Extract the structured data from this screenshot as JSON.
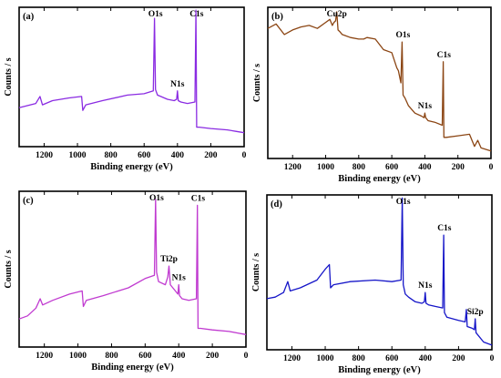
{
  "chart_data": [
    {
      "type": "line",
      "panel_label": "(a)",
      "xlabel": "Binding energy (eV)",
      "ylabel": "Counts / s",
      "xlim": [
        1350,
        0
      ],
      "xticks": [
        1200,
        1000,
        800,
        600,
        400,
        200,
        0
      ],
      "grid": false,
      "color": "#8a2be2",
      "series": [
        {
          "x": [
            1350,
            1250,
            1225,
            1210,
            1150,
            1050,
            975,
            968,
            950,
            850,
            700,
            600,
            545,
            538,
            532,
            520,
            500,
            460,
            420,
            405,
            400,
            395,
            380,
            340,
            295,
            289,
            285,
            270,
            200,
            100,
            50,
            0
          ],
          "y": [
            28,
            31,
            36,
            30,
            33,
            35,
            36,
            26,
            30,
            33,
            37,
            38,
            40,
            92,
            41,
            37,
            36,
            34,
            33,
            34,
            40,
            33,
            32,
            31,
            32,
            98,
            14,
            14,
            13,
            12,
            11,
            10
          ]
        }
      ],
      "annotations": [
        {
          "text": "O1s",
          "x": 532
        },
        {
          "text": "N1s",
          "x": 400
        },
        {
          "text": "C1s",
          "x": 285
        }
      ]
    },
    {
      "type": "line",
      "panel_label": "(b)",
      "xlabel": "Binding energy (eV)",
      "ylabel": "Counts / s",
      "xlim": [
        1350,
        0
      ],
      "xticks": [
        1200,
        1000,
        800,
        600,
        400,
        200,
        0
      ],
      "grid": false,
      "color": "#8b4513",
      "series": [
        {
          "x": [
            1350,
            1300,
            1250,
            1200,
            1150,
            1100,
            1050,
            1000,
            975,
            960,
            950,
            940,
            933,
            925,
            915,
            900,
            850,
            800,
            770,
            750,
            700,
            650,
            600,
            570,
            560,
            545,
            538,
            532,
            520,
            500,
            460,
            420,
            405,
            400,
            395,
            380,
            340,
            295,
            289,
            285,
            270,
            200,
            130,
            100,
            80,
            60,
            0
          ],
          "y": [
            86,
            89,
            82,
            85,
            87,
            88,
            86,
            90,
            92,
            88,
            90,
            91,
            97,
            85,
            84,
            82,
            80,
            79,
            79,
            80,
            79,
            72,
            70,
            60,
            58,
            50,
            77,
            42,
            40,
            35,
            30,
            28,
            27,
            30,
            27,
            25,
            24,
            22,
            64,
            14,
            14,
            15,
            16,
            8,
            12,
            7,
            5
          ]
        }
      ],
      "annotations": [
        {
          "text": "Cu2p",
          "x": 933
        },
        {
          "text": "O1s",
          "x": 532
        },
        {
          "text": "N1s",
          "x": 400
        },
        {
          "text": "C1s",
          "x": 285
        }
      ]
    },
    {
      "type": "line",
      "panel_label": "(c)",
      "xlabel": "Binding energy (eV)",
      "ylabel": "Counts / s",
      "xlim": [
        1350,
        0
      ],
      "xticks": [
        1200,
        1000,
        800,
        600,
        400,
        200,
        0
      ],
      "grid": false,
      "color": "#c03ad0",
      "series": [
        {
          "x": [
            1350,
            1300,
            1250,
            1225,
            1210,
            1150,
            1050,
            975,
            968,
            950,
            850,
            700,
            600,
            545,
            538,
            532,
            520,
            480,
            465,
            458,
            450,
            420,
            405,
            400,
            395,
            380,
            340,
            295,
            289,
            285,
            270,
            200,
            100,
            50,
            0
          ],
          "y": [
            18,
            20,
            25,
            31,
            27,
            30,
            34,
            36,
            26,
            30,
            33,
            38,
            44,
            46,
            95,
            48,
            42,
            40,
            45,
            52,
            40,
            36,
            34,
            40,
            33,
            31,
            30,
            31,
            91,
            12,
            12,
            11,
            10,
            9,
            8
          ]
        }
      ],
      "annotations": [
        {
          "text": "O1s",
          "x": 532
        },
        {
          "text": "Ti2p",
          "x": 458
        },
        {
          "text": "N1s",
          "x": 400
        },
        {
          "text": "C1s",
          "x": 285
        }
      ]
    },
    {
      "type": "line",
      "panel_label": "(d)",
      "xlabel": "Binding energy (eV)",
      "ylabel": "Counts / s",
      "xlim": [
        1350,
        0
      ],
      "xticks": [
        1200,
        1000,
        800,
        600,
        400,
        200,
        0
      ],
      "grid": false,
      "color": "#1515c8",
      "series": [
        {
          "x": [
            1350,
            1300,
            1250,
            1225,
            1210,
            1150,
            1050,
            1000,
            975,
            968,
            950,
            850,
            700,
            600,
            545,
            538,
            532,
            520,
            500,
            460,
            420,
            405,
            400,
            395,
            380,
            340,
            295,
            289,
            285,
            270,
            200,
            160,
            153,
            148,
            120,
            105,
            100,
            95,
            50,
            0
          ],
          "y": [
            33,
            34,
            37,
            44,
            38,
            40,
            45,
            52,
            55,
            40,
            42,
            44,
            45,
            44,
            45,
            98,
            42,
            36,
            34,
            31,
            30,
            31,
            37,
            30,
            29,
            28,
            27,
            74,
            24,
            21,
            19,
            18,
            26,
            15,
            14,
            13,
            20,
            11,
            5,
            3
          ]
        }
      ],
      "annotations": [
        {
          "text": "O1s",
          "x": 532
        },
        {
          "text": "N1s",
          "x": 400
        },
        {
          "text": "C1s",
          "x": 285
        },
        {
          "text": "Si2p",
          "x": 100
        }
      ]
    }
  ]
}
